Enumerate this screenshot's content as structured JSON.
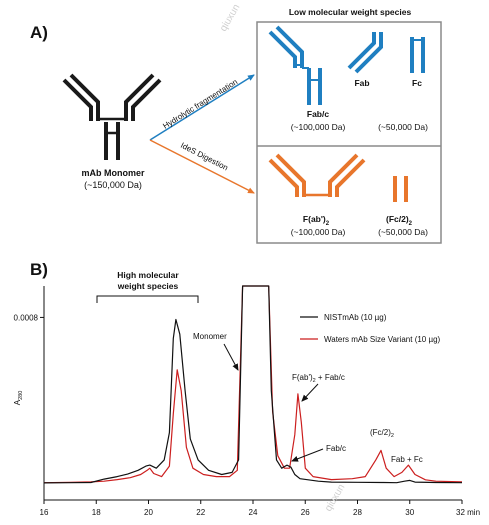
{
  "panel_a": {
    "label": "A)",
    "header": "Low molecular weight species",
    "monomer_label": "mAb Monomer",
    "monomer_mass": "(~150,000 Da)",
    "route_top": "Hydrolytic fragmentation",
    "route_bottom": "IdeS Digestion",
    "fragments_top": {
      "fabc": "Fab/c",
      "fabc_mass": "(~100,000 Da)",
      "fab": "Fab",
      "fc": "Fc",
      "fc_mass": "(~50,000 Da)"
    },
    "fragments_bottom": {
      "fab2_main": "F(ab')",
      "fab2_sub": "2",
      "fab2_mass": "(~100,000 Da)",
      "fc2_main": "(Fc/2)",
      "fc2_sub": "2",
      "fc2_mass": "(~50,000 Da)"
    },
    "colors": {
      "monomer": "#1a1a1a",
      "hydrolytic": "#1f7fc1",
      "ides": "#e8762c",
      "box": "#8a8a8a"
    },
    "watermark": "qiuxun"
  },
  "panel_b": {
    "label": "B)",
    "hmw_label_line1": "High molecular",
    "hmw_label_line2": "weight species",
    "annotations": {
      "monomer": "Monomer",
      "fab2_fabc_main": "F(ab')",
      "fab2_fabc_sub": "2",
      "fab2_fabc_rest": " + Fab/c",
      "fabc": "Fab/c",
      "fc2_main": "(Fc/2)",
      "fc2_sub": "2",
      "fab_fc": "Fab + Fc"
    },
    "watermark": "qiuxun"
  },
  "chart_data": {
    "type": "line",
    "title": "",
    "xlabel": "min",
    "ylabel_main": "A",
    "ylabel_sub": "280",
    "xlim": [
      16,
      32
    ],
    "ylim": [
      0,
      0.00095
    ],
    "xticks": [
      16,
      18,
      20,
      22,
      24,
      26,
      28,
      30,
      32
    ],
    "xtick_labels": [
      "16",
      "18",
      "20",
      "22",
      "24",
      "26",
      "28",
      "30",
      "32 min"
    ],
    "yticks": [
      0.0008
    ],
    "ytick_labels": [
      "0.0008"
    ],
    "grid": false,
    "legend_position": "top-right",
    "series": [
      {
        "name": "NISTmAb (10 µg)",
        "color": "#111111",
        "points": [
          [
            16,
            1e-05
          ],
          [
            17,
            1.1e-05
          ],
          [
            17.8,
            1.2e-05
          ],
          [
            18.3,
            2.8e-05
          ],
          [
            18.8,
            4e-05
          ],
          [
            19.2,
            5.2e-05
          ],
          [
            19.6,
            7e-05
          ],
          [
            19.9,
            9e-05
          ],
          [
            20.05,
            9.5e-05
          ],
          [
            20.3,
            8e-05
          ],
          [
            20.6,
            0.00012
          ],
          [
            20.8,
            0.00025
          ],
          [
            20.95,
            0.0007
          ],
          [
            21.05,
            0.00079
          ],
          [
            21.2,
            0.00072
          ],
          [
            21.4,
            0.00045
          ],
          [
            21.6,
            0.00022
          ],
          [
            21.9,
            0.00012
          ],
          [
            22.3,
            7e-05
          ],
          [
            22.8,
            5e-05
          ],
          [
            23.2,
            6e-05
          ],
          [
            23.45,
            0.00012
          ],
          [
            23.6,
            0.00095
          ],
          [
            24.6,
            0.00095
          ],
          [
            24.7,
            0.00045
          ],
          [
            24.9,
            0.00012
          ],
          [
            25.1,
            8e-05
          ],
          [
            25.3,
            9.5e-05
          ],
          [
            25.45,
            8.5e-05
          ],
          [
            25.6,
            5e-05
          ],
          [
            25.8,
            3e-05
          ],
          [
            26.5,
            1.8e-05
          ],
          [
            27,
            1.4e-05
          ],
          [
            28,
            1.3e-05
          ],
          [
            29,
            1.2e-05
          ],
          [
            29.5,
            1.1e-05
          ],
          [
            29.8,
            1.8e-05
          ],
          [
            30,
            2.2e-05
          ],
          [
            30.2,
            1.4e-05
          ],
          [
            31,
            1.2e-05
          ],
          [
            32,
            1.1e-05
          ]
        ]
      },
      {
        "name": "Waters mAb Size Variant (10 µg)",
        "color": "#cc1f1f",
        "points": [
          [
            16,
            1.1e-05
          ],
          [
            17,
            1.3e-05
          ],
          [
            17.8,
            1.5e-05
          ],
          [
            18.3,
            1.8e-05
          ],
          [
            18.8,
            2.6e-05
          ],
          [
            19.3,
            3.5e-05
          ],
          [
            19.7,
            5e-05
          ],
          [
            19.95,
            7e-05
          ],
          [
            20.05,
            8e-05
          ],
          [
            20.2,
            5.5e-05
          ],
          [
            20.5,
            4e-05
          ],
          [
            20.8,
            9e-05
          ],
          [
            20.95,
            0.00034
          ],
          [
            21.1,
            0.00055
          ],
          [
            21.25,
            0.00045
          ],
          [
            21.45,
            0.00018
          ],
          [
            21.7,
            8e-05
          ],
          [
            22.1,
            5e-05
          ],
          [
            22.6,
            4e-05
          ],
          [
            23.1,
            4e-05
          ],
          [
            23.4,
            7e-05
          ],
          [
            23.6,
            0.00095
          ],
          [
            24.6,
            0.00095
          ],
          [
            24.75,
            0.00035
          ],
          [
            24.95,
            0.00014
          ],
          [
            25.2,
            8e-05
          ],
          [
            25.4,
            8e-05
          ],
          [
            25.6,
            0.00024
          ],
          [
            25.72,
            0.000435
          ],
          [
            25.85,
            0.0003
          ],
          [
            26,
            8e-05
          ],
          [
            26.3,
            4e-05
          ],
          [
            27,
            2.6e-05
          ],
          [
            27.8,
            3e-05
          ],
          [
            28.3,
            4e-05
          ],
          [
            28.7,
            0.00012
          ],
          [
            28.9,
            0.000165
          ],
          [
            29.1,
            8e-05
          ],
          [
            29.4,
            4e-05
          ],
          [
            29.7,
            6e-05
          ],
          [
            29.95,
            9.5e-05
          ],
          [
            30.2,
            5e-05
          ],
          [
            30.6,
            2.5e-05
          ],
          [
            31,
            1.8e-05
          ],
          [
            32,
            1.5e-05
          ]
        ]
      }
    ]
  }
}
